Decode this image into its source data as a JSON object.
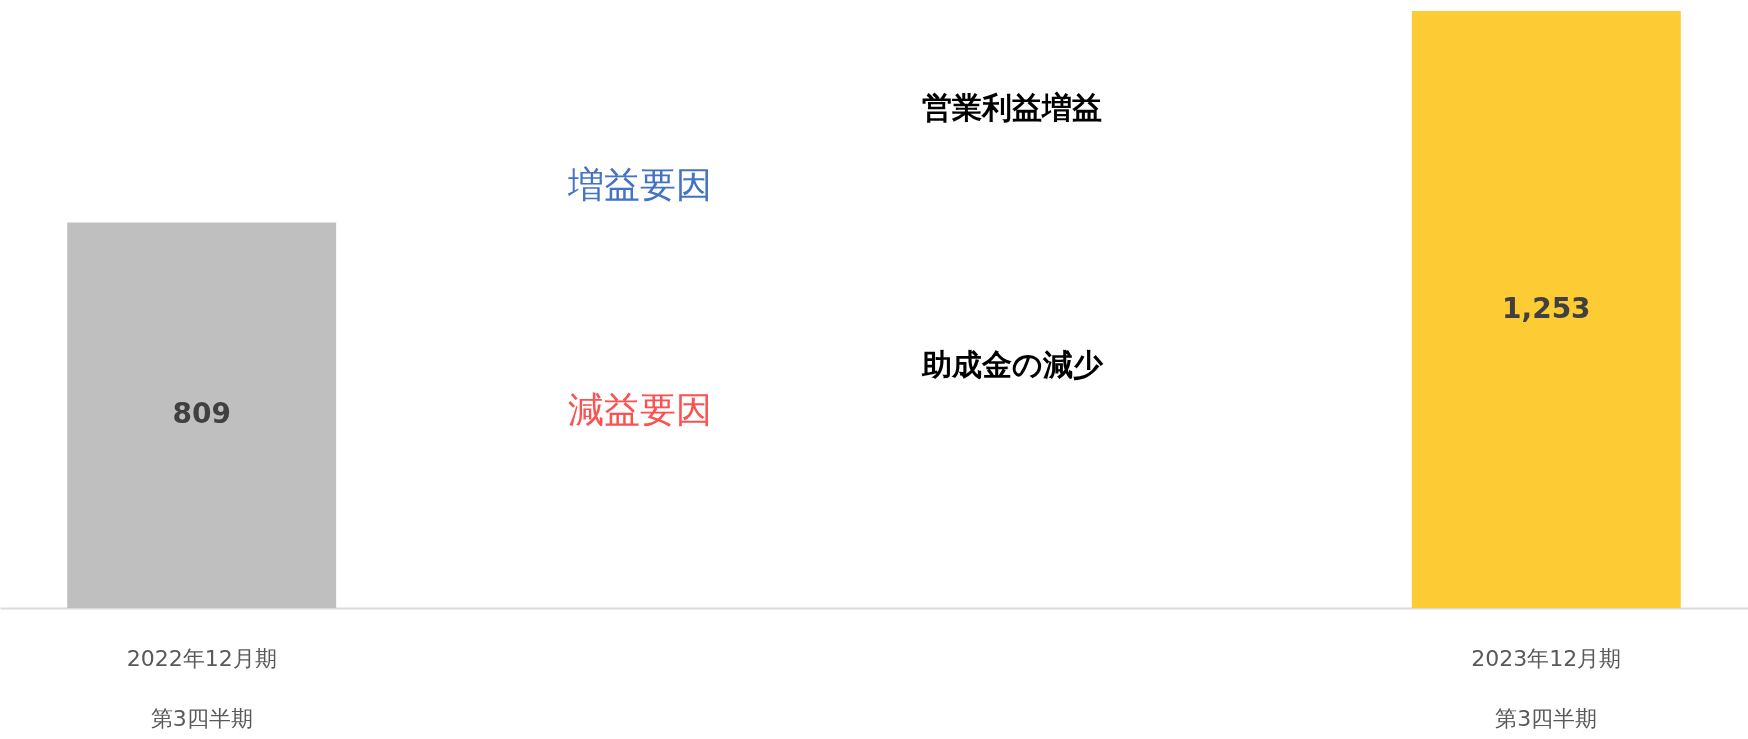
{
  "chart_data": {
    "type": "bar",
    "categories": [
      "2022年12月期第3四半期",
      "2023年12月期第3四半期"
    ],
    "values": [
      809,
      1253
    ],
    "colors": [
      "#bfbfbf",
      "#fdcb33"
    ],
    "value_labels": [
      "809",
      "1,253"
    ],
    "grid": false,
    "tick_labels": "x",
    "annotations": [
      "増益要因",
      "営業利益増益",
      "減益要因",
      "助成金の減少"
    ]
  }
}
